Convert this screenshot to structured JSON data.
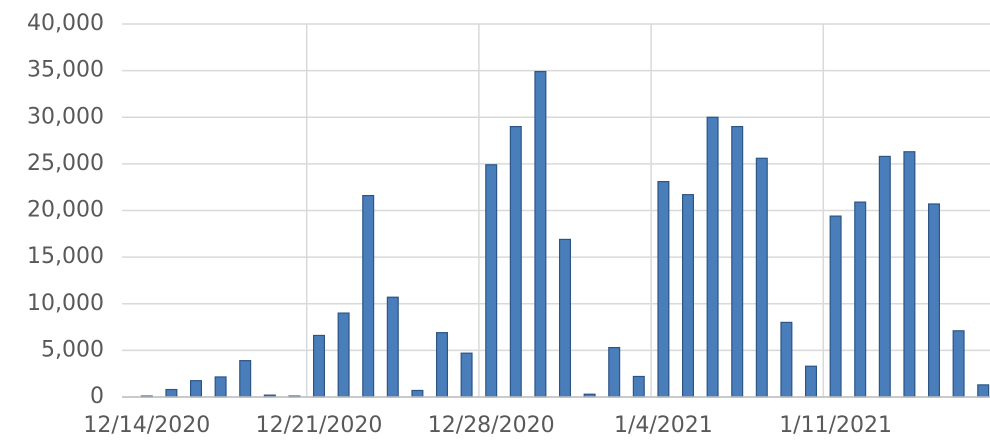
{
  "chart_data": {
    "type": "bar",
    "categories": [
      "12/14/2020",
      null,
      null,
      null,
      null,
      null,
      null,
      "12/21/2020",
      null,
      null,
      null,
      null,
      null,
      null,
      "12/28/2020",
      null,
      null,
      null,
      null,
      null,
      null,
      "1/4/2021",
      null,
      null,
      null,
      null,
      null,
      null,
      "1/11/2021",
      null,
      null,
      null,
      null,
      null,
      null
    ],
    "values": [
      100,
      800,
      1750,
      2150,
      3900,
      200,
      100,
      6600,
      9000,
      21600,
      10700,
      700,
      6900,
      4700,
      24900,
      29000,
      34900,
      16900,
      300,
      5300,
      2200,
      23100,
      21700,
      30000,
      29000,
      25600,
      8000,
      3300,
      19400,
      20900,
      25800,
      26300,
      20700,
      7100,
      1300
    ],
    "color": "#4a7ebb",
    "ylim": [
      0,
      40000
    ],
    "yticks": [
      0,
      {
        "value": 5000,
        "label": "5,000"
      },
      {
        "value": 10000,
        "label": "10,000"
      },
      {
        "value": 15000,
        "label": "15,000"
      },
      {
        "value": 20000,
        "label": "20,000"
      },
      {
        "value": 25000,
        "label": "25,000"
      },
      {
        "value": 30000,
        "label": "30,000"
      },
      {
        "value": 35000,
        "label": "35,000"
      },
      {
        "value": 40000,
        "label": "40,000"
      }
    ],
    "grid": true
  }
}
